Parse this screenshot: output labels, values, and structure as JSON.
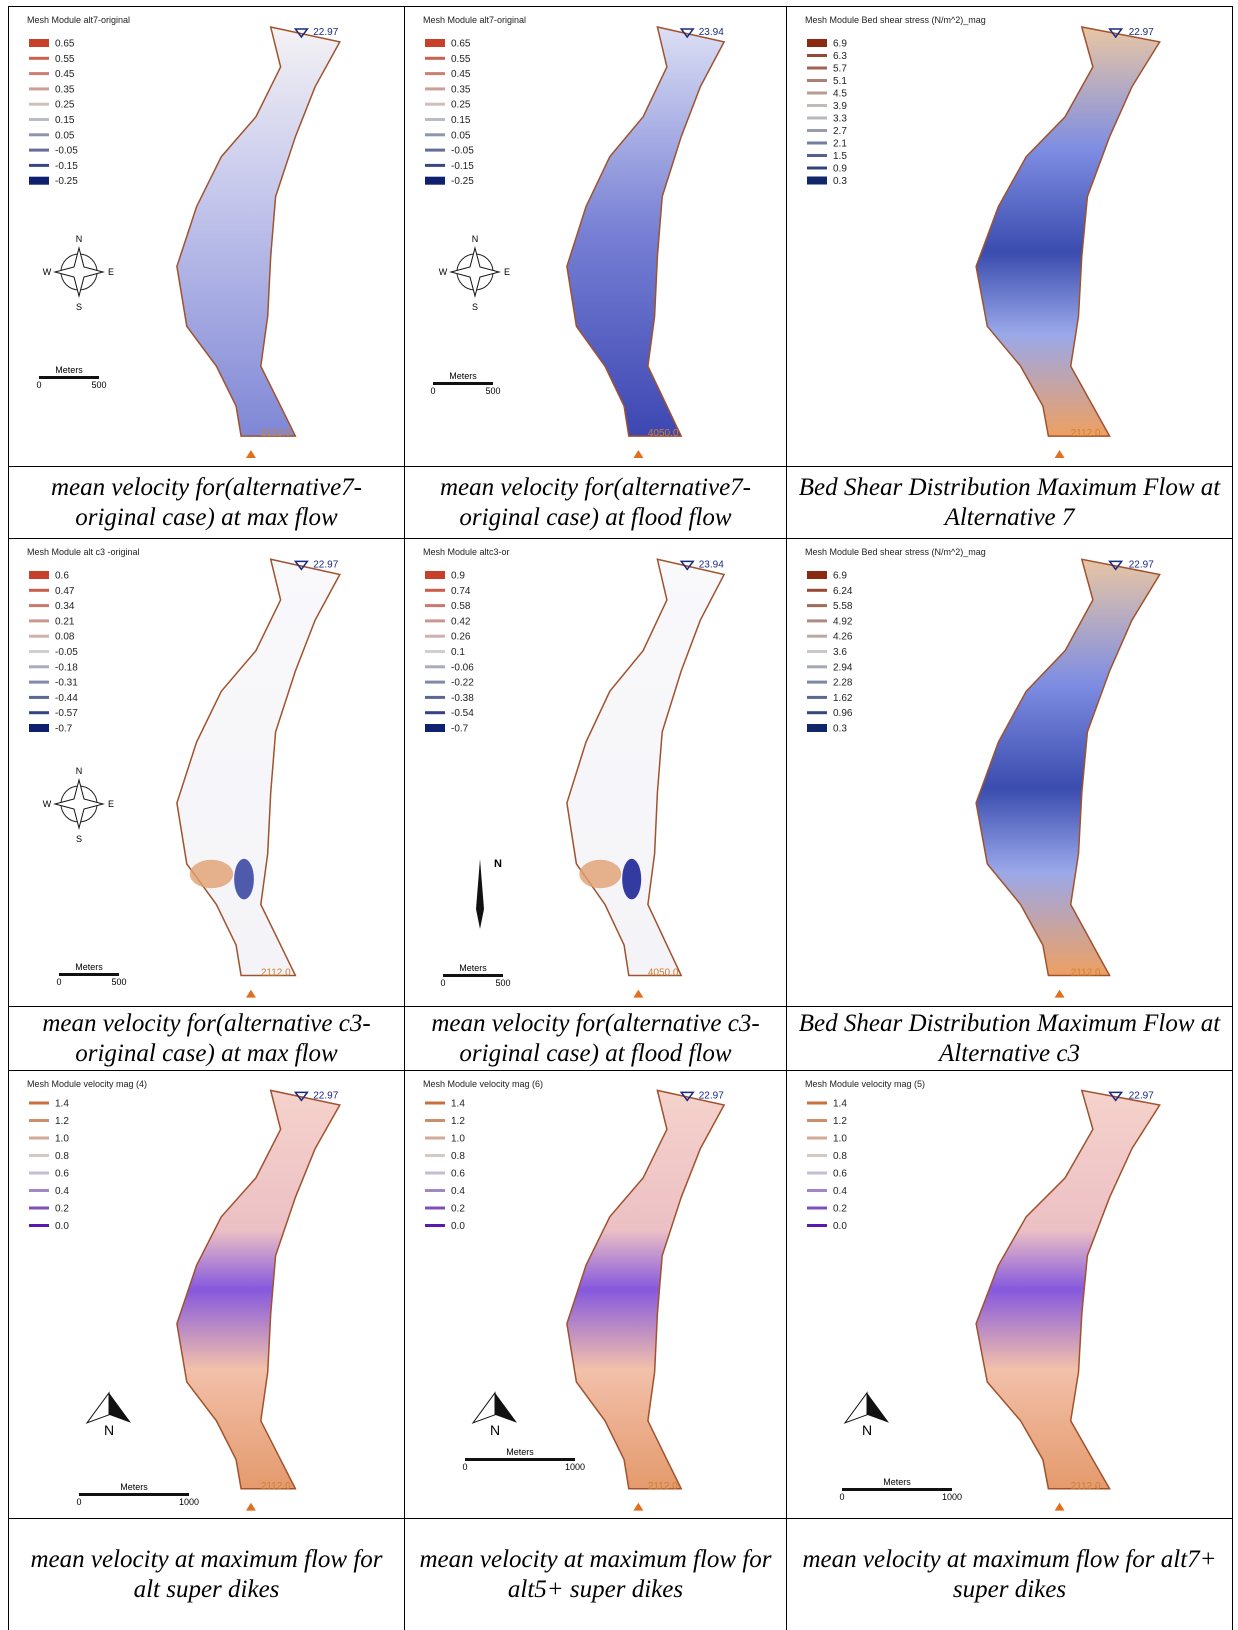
{
  "panels": [
    {
      "map_title": "Mesh Module alt7-original",
      "legend": [
        "0.65",
        "0.55",
        "0.45",
        "0.35",
        "0.25",
        "0.15",
        "0.05",
        "-0.05",
        "-0.15",
        "-0.25"
      ],
      "top_label": "22.97",
      "bottom_label": "2112.0",
      "compass": [
        "N",
        "W",
        "E",
        "S"
      ],
      "scale": [
        "Meters",
        "0",
        "500"
      ],
      "caption": "mean velocity for(alternative7-original case) at max flow"
    },
    {
      "map_title": "Mesh Module alt7-original",
      "legend": [
        "0.65",
        "0.55",
        "0.45",
        "0.35",
        "0.25",
        "0.15",
        "0.05",
        "-0.05",
        "-0.15",
        "-0.25"
      ],
      "top_label": "23.94",
      "bottom_label": "4050.0",
      "compass": [
        "N",
        "W",
        "E",
        "S"
      ],
      "scale": [
        "Meters",
        "0",
        "500"
      ],
      "caption": "mean velocity for(alternative7-original case) at flood flow"
    },
    {
      "map_title": "Mesh Module Bed shear stress (N/m^2)_mag",
      "legend": [
        "6.9",
        "6.3",
        "5.7",
        "5.1",
        "4.5",
        "3.9",
        "3.3",
        "2.7",
        "2.1",
        "1.5",
        "0.9",
        "0.3"
      ],
      "top_label": "22.97",
      "bottom_label": "2112.0",
      "caption": "Bed Shear Distribution Maximum Flow at Alternative 7"
    },
    {
      "map_title": "Mesh Module alt c3 -original",
      "legend": [
        "0.6",
        "0.47",
        "0.34",
        "0.21",
        "0.08",
        "-0.05",
        "-0.18",
        "-0.31",
        "-0.44",
        "-0.57",
        "-0.7"
      ],
      "top_label": "22.97",
      "bottom_label": "2112.0",
      "compass": [
        "N",
        "W",
        "E",
        "S"
      ],
      "scale": [
        "Meters",
        "0",
        "500"
      ],
      "caption": "mean velocity for(alternative c3-original case) at max flow"
    },
    {
      "map_title": "Mesh Module altc3-or",
      "legend": [
        "0.9",
        "0.74",
        "0.58",
        "0.42",
        "0.26",
        "0.1",
        "-0.06",
        "-0.22",
        "-0.38",
        "-0.54",
        "-0.7"
      ],
      "top_label": "23.94",
      "bottom_label": "4050.0",
      "compass": [
        "N"
      ],
      "scale": [
        "Meters",
        "0",
        "500"
      ],
      "caption": "mean velocity for(alternative c3-original case) at flood flow"
    },
    {
      "map_title": "Mesh Module Bed shear stress (N/m^2)_mag",
      "legend": [
        "6.9",
        "6.24",
        "5.58",
        "4.92",
        "4.26",
        "3.6",
        "2.94",
        "2.28",
        "1.62",
        "0.96",
        "0.3"
      ],
      "top_label": "22.97",
      "bottom_label": "2112.0",
      "caption": "Bed Shear Distribution Maximum Flow at Alternative c3"
    },
    {
      "map_title": "Mesh Module velocity mag (4)",
      "legend": [
        "1.4",
        "1.2",
        "1.0",
        "0.8",
        "0.6",
        "0.4",
        "0.2",
        "0.0"
      ],
      "top_label": "22.97",
      "bottom_label": "2112.0",
      "compass": [
        "N"
      ],
      "scale": [
        "Meters",
        "0",
        "1000"
      ],
      "caption": "mean velocity at maximum flow for alt super dikes"
    },
    {
      "map_title": "Mesh Module velocity mag (6)",
      "legend": [
        "1.4",
        "1.2",
        "1.0",
        "0.8",
        "0.6",
        "0.4",
        "0.2",
        "0.0"
      ],
      "top_label": "22.97",
      "bottom_label": "2112.0",
      "compass": [
        "N"
      ],
      "scale": [
        "Meters",
        "0",
        "1000"
      ],
      "caption": "mean velocity at maximum flow for alt5+ super dikes"
    },
    {
      "map_title": "Mesh Module velocity mag (5)",
      "legend": [
        "1.4",
        "1.2",
        "1.0",
        "0.8",
        "0.6",
        "0.4",
        "0.2",
        "0.0"
      ],
      "top_label": "22.97",
      "bottom_label": "2112.0",
      "compass": [
        "N"
      ],
      "scale": [
        "Meters",
        "0",
        "1000"
      ],
      "caption": "mean velocity at maximum flow for alt7+ super dikes"
    }
  ]
}
